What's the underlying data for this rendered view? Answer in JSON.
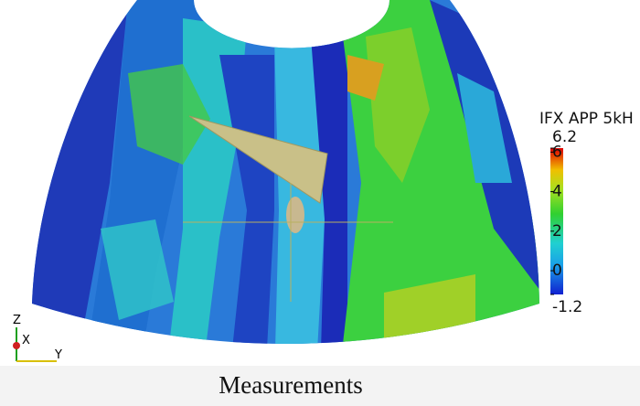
{
  "colorbar": {
    "title": "IFX APP 5kH",
    "range": [
      -1.2,
      6.2
    ],
    "ticks": [
      -1.2,
      0,
      2,
      4,
      6,
      6.2
    ]
  },
  "axes_triad": {
    "z": "Z",
    "x": "X",
    "y": "Y"
  },
  "caption": "Measurements"
}
